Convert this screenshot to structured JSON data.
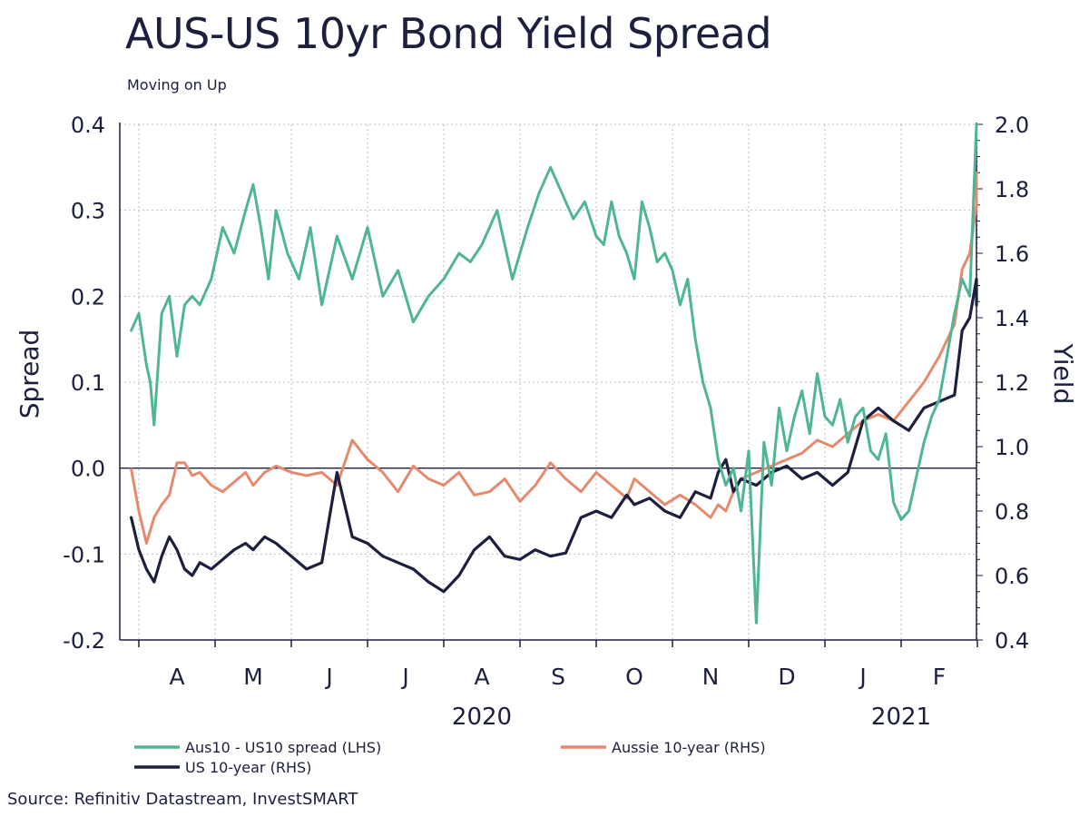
{
  "chart_data": {
    "type": "line",
    "title": "AUS-US 10yr Bond Yield Spread",
    "subtitle": "Moving on Up",
    "ylabel_left": "Spread",
    "ylabel_right": "Yield",
    "ylim_left": [
      -0.2,
      0.4
    ],
    "ylim_right": [
      0.4,
      2.0
    ],
    "left_ticks": [
      "0.4",
      "0.3",
      "0.2",
      "0.1",
      "0.0",
      "-0.1",
      "-0.2"
    ],
    "left_tick_values": [
      0.4,
      0.3,
      0.2,
      0.1,
      0.0,
      -0.1,
      -0.2
    ],
    "right_ticks": [
      "2.0",
      "1.8",
      "1.6",
      "1.4",
      "1.2",
      "1.0",
      "0.8",
      "0.6",
      "0.4"
    ],
    "right_tick_values": [
      2.0,
      1.8,
      1.6,
      1.4,
      1.2,
      1.0,
      0.8,
      0.6,
      0.4
    ],
    "x_months": [
      "A",
      "M",
      "J",
      "J",
      "A",
      "S",
      "O",
      "N",
      "D",
      "J",
      "F"
    ],
    "x_years": [
      {
        "label": "2020",
        "after_month": 4
      },
      {
        "label": "2021",
        "after_month": 9.5
      }
    ],
    "x_range_months": [
      -0.6,
      10.6
    ],
    "grid": true,
    "legend_position": "bottom",
    "series": [
      {
        "name": "Aus10 - US10 spread (LHS)",
        "axis": "left",
        "color": "#4fb596",
        "x": [
          -0.6,
          -0.5,
          -0.4,
          -0.35,
          -0.3,
          -0.2,
          -0.1,
          0,
          0.1,
          0.2,
          0.3,
          0.45,
          0.6,
          0.75,
          0.9,
          1.0,
          1.1,
          1.2,
          1.3,
          1.45,
          1.6,
          1.75,
          1.9,
          2.1,
          2.3,
          2.5,
          2.7,
          2.9,
          3.1,
          3.3,
          3.5,
          3.7,
          3.85,
          4.0,
          4.2,
          4.4,
          4.6,
          4.75,
          4.9,
          5.05,
          5.2,
          5.35,
          5.5,
          5.6,
          5.7,
          5.8,
          5.9,
          6.0,
          6.1,
          6.2,
          6.3,
          6.4,
          6.5,
          6.6,
          6.7,
          6.8,
          6.9,
          7.0,
          7.1,
          7.2,
          7.3,
          7.4,
          7.5,
          7.6,
          7.7,
          7.8,
          7.9,
          8.0,
          8.1,
          8.2,
          8.3,
          8.4,
          8.5,
          8.6,
          8.7,
          8.8,
          8.9,
          9.0,
          9.1,
          9.2,
          9.3,
          9.4,
          9.5,
          9.6,
          9.7,
          9.8,
          9.9,
          10.0,
          10.1,
          10.2,
          10.3,
          10.4,
          10.5,
          10.55
        ],
        "values": [
          0.16,
          0.18,
          0.12,
          0.1,
          0.05,
          0.18,
          0.2,
          0.13,
          0.19,
          0.2,
          0.19,
          0.22,
          0.28,
          0.25,
          0.3,
          0.33,
          0.28,
          0.22,
          0.3,
          0.25,
          0.22,
          0.28,
          0.19,
          0.27,
          0.22,
          0.28,
          0.2,
          0.23,
          0.17,
          0.2,
          0.22,
          0.25,
          0.24,
          0.26,
          0.3,
          0.22,
          0.28,
          0.32,
          0.35,
          0.32,
          0.29,
          0.31,
          0.27,
          0.26,
          0.31,
          0.27,
          0.25,
          0.22,
          0.31,
          0.28,
          0.24,
          0.25,
          0.23,
          0.19,
          0.22,
          0.15,
          0.1,
          0.07,
          0.01,
          -0.02,
          0.0,
          -0.05,
          0.02,
          -0.18,
          0.03,
          -0.02,
          0.07,
          0.02,
          0.06,
          0.09,
          0.04,
          0.11,
          0.06,
          0.05,
          0.08,
          0.03,
          0.06,
          0.07,
          0.02,
          0.01,
          0.04,
          -0.04,
          -0.06,
          -0.05,
          -0.01,
          0.03,
          0.06,
          0.08,
          0.13,
          0.18,
          0.22,
          0.2,
          0.4,
          0.4
        ]
      },
      {
        "name": "Aussie 10-year (RHS)",
        "axis": "right",
        "color": "#e58a6e",
        "x": [
          -0.6,
          -0.5,
          -0.4,
          -0.3,
          -0.2,
          -0.1,
          0,
          0.1,
          0.2,
          0.3,
          0.45,
          0.6,
          0.75,
          0.9,
          1.0,
          1.15,
          1.3,
          1.5,
          1.7,
          1.9,
          2.1,
          2.3,
          2.5,
          2.7,
          2.9,
          3.1,
          3.3,
          3.5,
          3.7,
          3.9,
          4.1,
          4.3,
          4.5,
          4.7,
          4.9,
          5.1,
          5.3,
          5.5,
          5.7,
          5.9,
          6.0,
          6.2,
          6.4,
          6.6,
          6.8,
          7.0,
          7.1,
          7.2,
          7.3,
          7.4,
          7.6,
          7.8,
          8.0,
          8.2,
          8.4,
          8.6,
          8.8,
          9.0,
          9.2,
          9.4,
          9.6,
          9.8,
          10.0,
          10.2,
          10.3,
          10.4,
          10.5,
          10.55
        ],
        "values": [
          0.93,
          0.8,
          0.7,
          0.78,
          0.82,
          0.85,
          0.95,
          0.95,
          0.91,
          0.92,
          0.88,
          0.86,
          0.89,
          0.92,
          0.88,
          0.92,
          0.94,
          0.92,
          0.91,
          0.92,
          0.88,
          1.02,
          0.96,
          0.92,
          0.86,
          0.94,
          0.9,
          0.88,
          0.92,
          0.85,
          0.86,
          0.9,
          0.83,
          0.88,
          0.95,
          0.9,
          0.86,
          0.92,
          0.88,
          0.84,
          0.9,
          0.86,
          0.82,
          0.85,
          0.82,
          0.78,
          0.82,
          0.8,
          0.86,
          0.9,
          0.92,
          0.94,
          0.96,
          0.98,
          1.02,
          1.0,
          1.04,
          1.08,
          1.1,
          1.08,
          1.14,
          1.2,
          1.28,
          1.38,
          1.55,
          1.6,
          1.75,
          1.85
        ]
      },
      {
        "name": "US 10-year (RHS)",
        "axis": "right",
        "color": "#1c1f3d",
        "x": [
          -0.6,
          -0.5,
          -0.4,
          -0.3,
          -0.2,
          -0.1,
          0,
          0.1,
          0.2,
          0.3,
          0.45,
          0.6,
          0.75,
          0.9,
          1.0,
          1.15,
          1.3,
          1.5,
          1.7,
          1.9,
          2.1,
          2.3,
          2.5,
          2.7,
          2.9,
          3.1,
          3.3,
          3.5,
          3.7,
          3.9,
          4.1,
          4.3,
          4.5,
          4.7,
          4.9,
          5.1,
          5.3,
          5.5,
          5.7,
          5.9,
          6.0,
          6.2,
          6.4,
          6.6,
          6.8,
          7.0,
          7.1,
          7.2,
          7.3,
          7.4,
          7.6,
          7.8,
          8.0,
          8.2,
          8.4,
          8.6,
          8.8,
          9.0,
          9.2,
          9.4,
          9.6,
          9.8,
          10.0,
          10.2,
          10.3,
          10.4,
          10.5,
          10.55
        ],
        "values": [
          0.78,
          0.68,
          0.62,
          0.58,
          0.66,
          0.72,
          0.68,
          0.62,
          0.6,
          0.64,
          0.62,
          0.65,
          0.68,
          0.7,
          0.68,
          0.72,
          0.7,
          0.66,
          0.62,
          0.64,
          0.92,
          0.72,
          0.7,
          0.66,
          0.64,
          0.62,
          0.58,
          0.55,
          0.6,
          0.68,
          0.72,
          0.66,
          0.65,
          0.68,
          0.66,
          0.67,
          0.78,
          0.8,
          0.78,
          0.85,
          0.82,
          0.84,
          0.8,
          0.78,
          0.86,
          0.84,
          0.92,
          0.96,
          0.86,
          0.9,
          0.88,
          0.92,
          0.94,
          0.9,
          0.92,
          0.88,
          0.92,
          1.08,
          1.12,
          1.08,
          1.05,
          1.12,
          1.14,
          1.16,
          1.36,
          1.4,
          1.52,
          1.44
        ]
      }
    ]
  },
  "source": "Source: Refinitiv Datastream, InvestSMART"
}
